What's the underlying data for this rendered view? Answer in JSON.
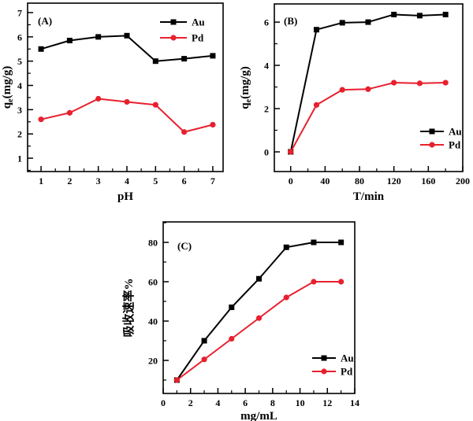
{
  "figure": {
    "background": "#ffffff",
    "axis_color": "#000000",
    "au_color": "#000000",
    "pd_color": "#e8202e"
  },
  "chart_data": [
    {
      "id": "A",
      "type": "line",
      "panel_label": "(A)",
      "xlabel": "pH",
      "ylabel": {
        "pre": "q",
        "sub": "e",
        "post": "(mg/g)"
      },
      "x": [
        1,
        2,
        3,
        4,
        5,
        6,
        7
      ],
      "series": [
        {
          "name": "Au",
          "marker": "square",
          "color": "#000000",
          "values": [
            5.5,
            5.85,
            6.0,
            6.05,
            5.0,
            5.1,
            5.22
          ]
        },
        {
          "name": "Pd",
          "marker": "circle",
          "color": "#e8202e",
          "values": [
            2.6,
            2.87,
            3.45,
            3.32,
            3.2,
            2.08,
            2.38
          ]
        }
      ],
      "xlim": [
        0.53,
        7.36
      ],
      "ylim": [
        0.45,
        7.39
      ],
      "xticks": [
        1,
        2,
        3,
        4,
        5,
        6,
        7
      ],
      "yticks": [
        1,
        2,
        3,
        4,
        5,
        6,
        7
      ],
      "minor_x": 0.5,
      "minor_y": 0.5,
      "grid": false,
      "legend_position": "top-right"
    },
    {
      "id": "B",
      "type": "line",
      "panel_label": "(B)",
      "xlabel": "T/min",
      "ylabel": {
        "pre": "q",
        "sub": "e",
        "post": "(mg/g)"
      },
      "x": [
        0,
        30,
        60,
        90,
        120,
        150,
        180
      ],
      "series": [
        {
          "name": "Au",
          "marker": "square",
          "color": "#000000",
          "values": [
            0,
            5.65,
            5.97,
            6.0,
            6.35,
            6.3,
            6.35
          ]
        },
        {
          "name": "Pd",
          "marker": "circle",
          "color": "#e8202e",
          "values": [
            0,
            2.17,
            2.87,
            2.9,
            3.2,
            3.17,
            3.2
          ]
        }
      ],
      "xlim": [
        -19,
        200
      ],
      "ylim": [
        -0.91,
        6.84
      ],
      "xticks": [
        0,
        40,
        80,
        120,
        160,
        200
      ],
      "yticks": [
        0,
        2,
        4,
        6
      ],
      "minor_x": 20,
      "minor_y": 1,
      "grid": false,
      "legend_position": "bottom-right"
    },
    {
      "id": "C",
      "type": "line",
      "panel_label": "(C)",
      "xlabel": "mg/mL",
      "ylabel": {
        "pre": "吸收速率%",
        "sub": "",
        "post": ""
      },
      "x": [
        1,
        3,
        5,
        7,
        9,
        11,
        13
      ],
      "series": [
        {
          "name": "Au",
          "marker": "square",
          "color": "#000000",
          "values": [
            10,
            30,
            47,
            61.5,
            77.5,
            80,
            80
          ]
        },
        {
          "name": "Pd",
          "marker": "circle",
          "color": "#e8202e",
          "values": [
            10,
            20.5,
            31,
            41.5,
            52,
            60,
            60
          ]
        }
      ],
      "xlim": [
        0,
        14
      ],
      "ylim": [
        3.2,
        90.4
      ],
      "xticks": [
        0,
        2,
        4,
        6,
        8,
        10,
        12,
        14
      ],
      "yticks": [
        20,
        40,
        60,
        80
      ],
      "minor_x": 1,
      "minor_y": 10,
      "grid": false,
      "legend_position": "bottom-right"
    }
  ]
}
